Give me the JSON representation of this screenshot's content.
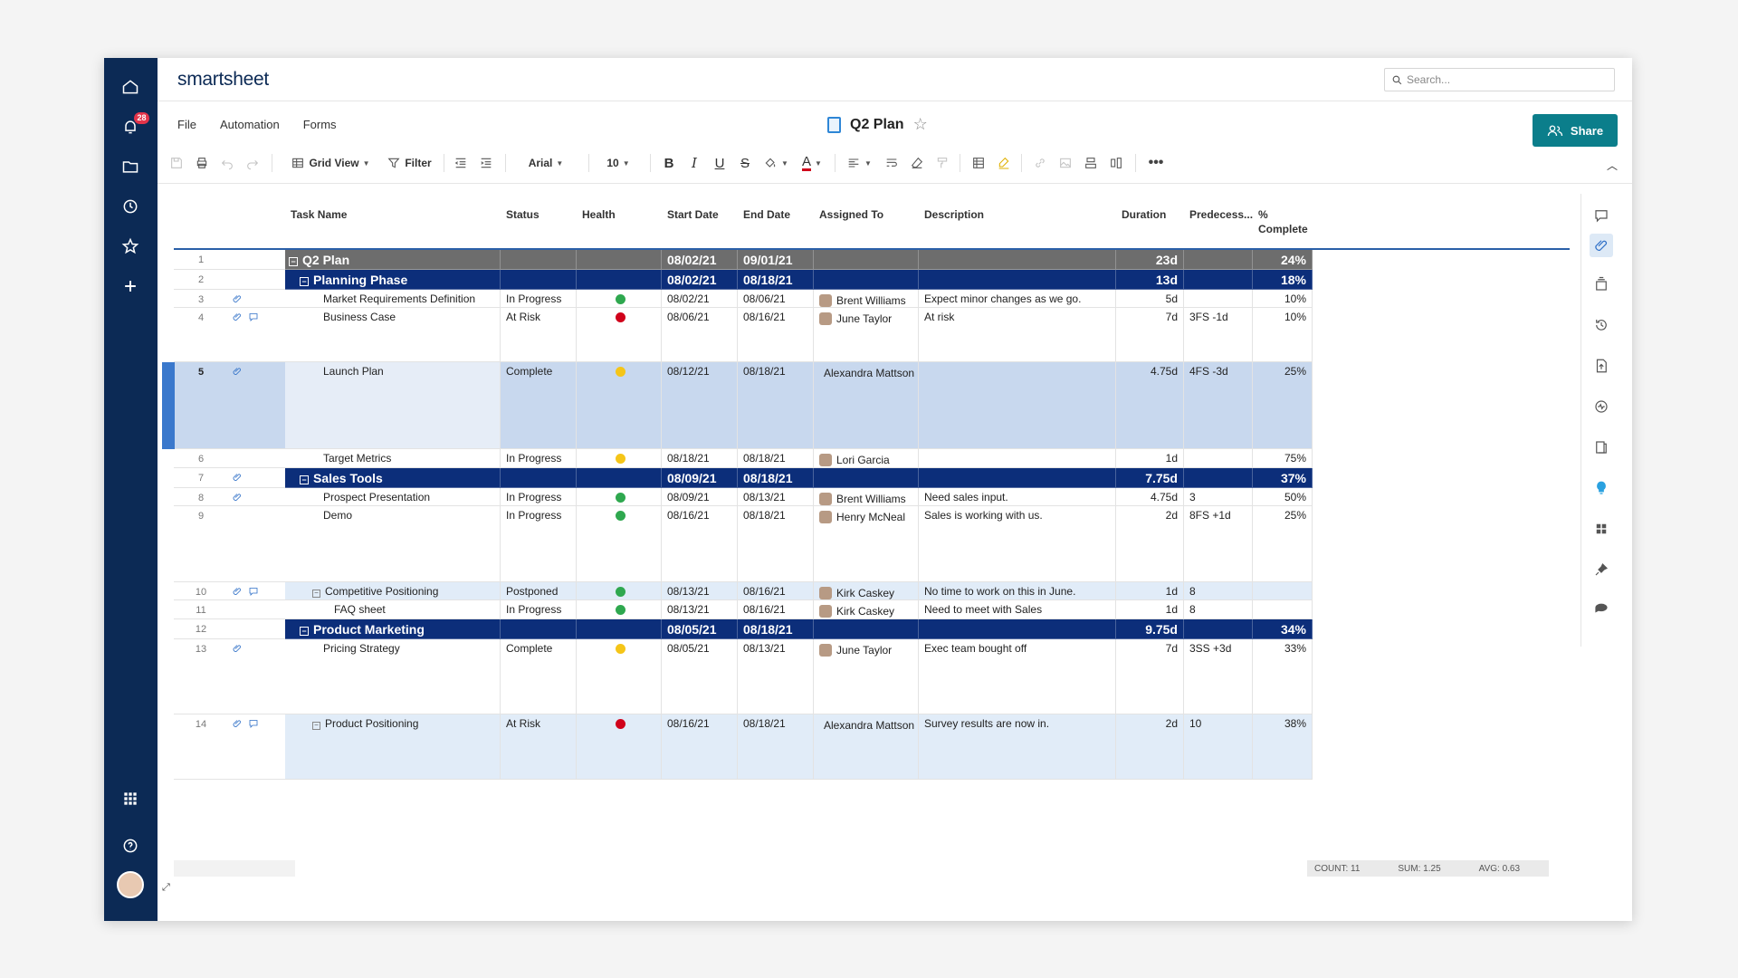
{
  "app": {
    "logo": "smartsheet",
    "notifications_count": "28",
    "search_placeholder": "Search...",
    "sheet_title": "Q2 Plan",
    "share_label": "Share",
    "menu": [
      "File",
      "Automation",
      "Forms"
    ]
  },
  "toolbar": {
    "view_label": "Grid View",
    "filter_label": "Filter",
    "font": "Arial",
    "font_size": "10"
  },
  "columns": {
    "task": "Task Name",
    "status": "Status",
    "health": "Health",
    "start": "Start Date",
    "end": "End Date",
    "assigned": "Assigned To",
    "description": "Description",
    "duration": "Duration",
    "predecessors": "Predecess...",
    "complete": "% Complete"
  },
  "rows": [
    {
      "num": "1",
      "task": "Q2 Plan",
      "status": "",
      "health": "",
      "start": "08/02/21",
      "end": "09/01/21",
      "assigned": "",
      "desc": "",
      "duration": "23d",
      "pred": "",
      "complete": "24%"
    },
    {
      "num": "2",
      "task": "Planning Phase",
      "status": "",
      "health": "",
      "start": "08/02/21",
      "end": "08/18/21",
      "assigned": "",
      "desc": "",
      "duration": "13d",
      "pred": "",
      "complete": "18%"
    },
    {
      "num": "3",
      "task": "Market Requirements Definition",
      "status": "In Progress",
      "health": "#2fa84f",
      "start": "08/02/21",
      "end": "08/06/21",
      "assigned": "Brent Williams",
      "desc": "Expect minor changes as we go.",
      "duration": "5d",
      "pred": "",
      "complete": "10%"
    },
    {
      "num": "4",
      "task": "Business Case",
      "status": "At Risk",
      "health": "#d0021b",
      "start": "08/06/21",
      "end": "08/16/21",
      "assigned": "June Taylor",
      "desc": "At risk",
      "duration": "7d",
      "pred": "3FS -1d",
      "complete": "10%"
    },
    {
      "num": "5",
      "task": "Launch Plan",
      "status": "Complete",
      "health": "#f5c518",
      "start": "08/12/21",
      "end": "08/18/21",
      "assigned": "Alexandra Mattson",
      "desc": "",
      "duration": "4.75d",
      "pred": "4FS -3d",
      "complete": "25%"
    },
    {
      "num": "6",
      "task": "Target Metrics",
      "status": "In Progress",
      "health": "#f5c518",
      "start": "08/18/21",
      "end": "08/18/21",
      "assigned": "Lori Garcia",
      "desc": "",
      "duration": "1d",
      "pred": "",
      "complete": "75%"
    },
    {
      "num": "7",
      "task": "Sales Tools",
      "status": "",
      "health": "",
      "start": "08/09/21",
      "end": "08/18/21",
      "assigned": "",
      "desc": "",
      "duration": "7.75d",
      "pred": "",
      "complete": "37%"
    },
    {
      "num": "8",
      "task": "Prospect Presentation",
      "status": "In Progress",
      "health": "#2fa84f",
      "start": "08/09/21",
      "end": "08/13/21",
      "assigned": "Brent Williams",
      "desc": "Need sales input.",
      "duration": "4.75d",
      "pred": "3",
      "complete": "50%"
    },
    {
      "num": "9",
      "task": "Demo",
      "status": "In Progress",
      "health": "#2fa84f",
      "start": "08/16/21",
      "end": "08/18/21",
      "assigned": "Henry McNeal",
      "desc": "Sales is working with us.",
      "duration": "2d",
      "pred": "8FS +1d",
      "complete": "25%"
    },
    {
      "num": "10",
      "task": "Competitive Positioning",
      "status": "Postponed",
      "health": "#2fa84f",
      "start": "08/13/21",
      "end": "08/16/21",
      "assigned": "Kirk Caskey",
      "desc": "No time to work on this in June.",
      "duration": "1d",
      "pred": "8",
      "complete": ""
    },
    {
      "num": "11",
      "task": "FAQ sheet",
      "status": "In Progress",
      "health": "#2fa84f",
      "start": "08/13/21",
      "end": "08/16/21",
      "assigned": "Kirk Caskey",
      "desc": "Need to meet with Sales",
      "duration": "1d",
      "pred": "8",
      "complete": ""
    },
    {
      "num": "12",
      "task": "Product Marketing",
      "status": "",
      "health": "",
      "start": "08/05/21",
      "end": "08/18/21",
      "assigned": "",
      "desc": "",
      "duration": "9.75d",
      "pred": "",
      "complete": "34%"
    },
    {
      "num": "13",
      "task": "Pricing Strategy",
      "status": "Complete",
      "health": "#f5c518",
      "start": "08/05/21",
      "end": "08/13/21",
      "assigned": "June Taylor",
      "desc": "Exec team bought off",
      "duration": "7d",
      "pred": "3SS +3d",
      "complete": "33%"
    },
    {
      "num": "14",
      "task": "Product Positioning",
      "status": "At Risk",
      "health": "#d0021b",
      "start": "08/16/21",
      "end": "08/18/21",
      "assigned": "Alexandra Mattson",
      "desc": "Survey results are now in.",
      "duration": "2d",
      "pred": "10",
      "complete": "38%"
    }
  ],
  "summary": {
    "count": "COUNT: 11",
    "sum": "SUM: 1.25",
    "avg": "AVG: 0.63"
  }
}
